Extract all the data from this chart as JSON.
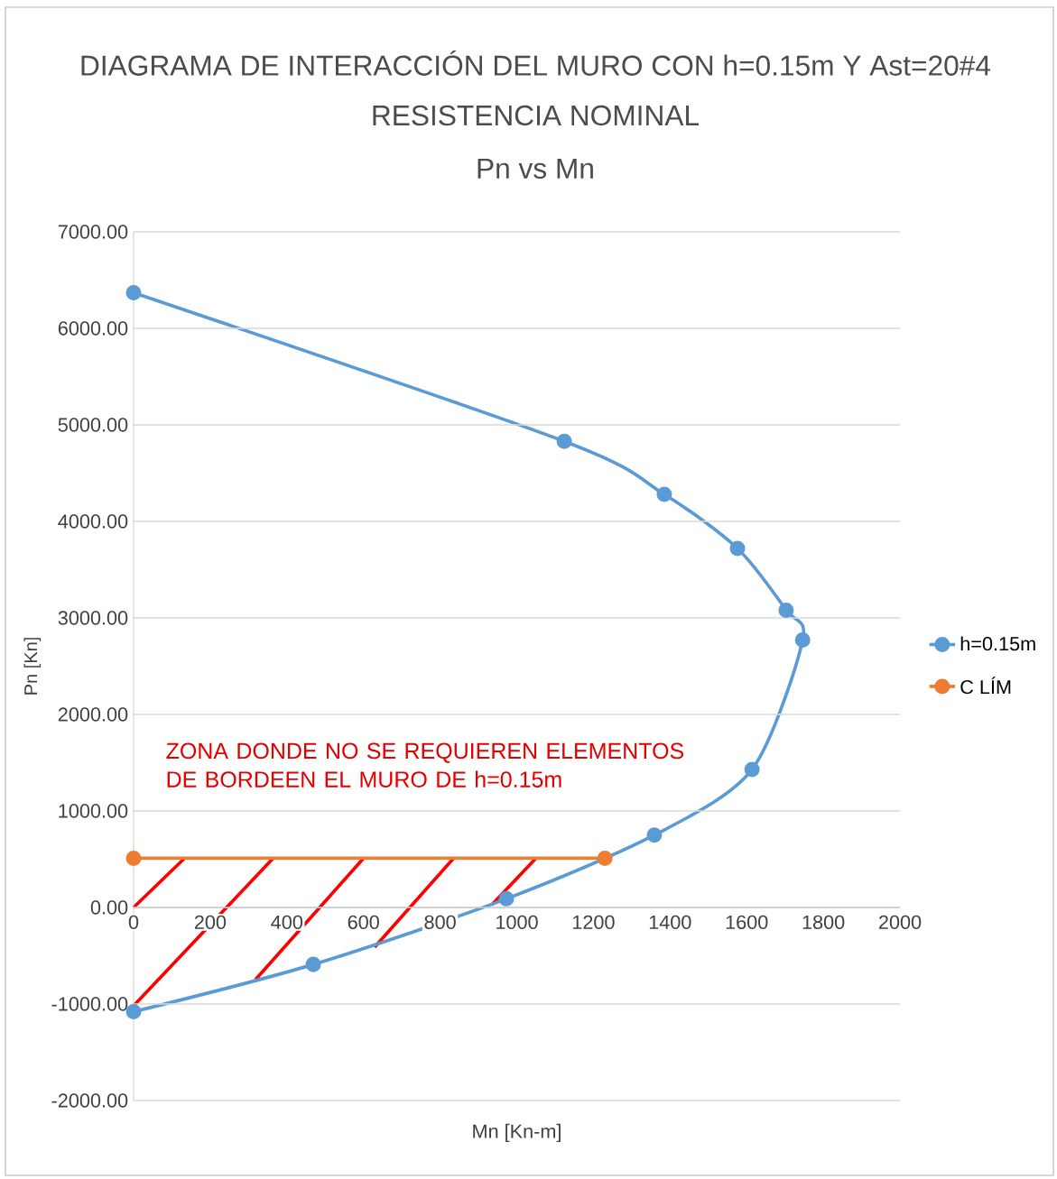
{
  "chart_data": {
    "type": "line",
    "title": "DIAGRAMA DE INTERACCIÓN DEL MURO CON  h=0.15m Y  Ast=20#4",
    "subtitle": "RESISTENCIA NOMINAL",
    "annotations": [
      "Pn vs Mn",
      "ZONA DONDE NO SE REQUIEREN ELEMENTOS DE BORDEEN EL MURO DE h=0.15m"
    ],
    "xlabel": "Mn [Kn-m]",
    "ylabel": "Pn [Kn]",
    "series": [
      {
        "name": "h=0.15m",
        "color": "#5b9bd5",
        "x": [
          0,
          1124,
          1385,
          1576,
          1703,
          1746,
          1614,
          1359,
          973,
          469,
          0
        ],
        "values": [
          6370,
          4830,
          4280,
          3720,
          3080,
          2770,
          1430,
          750,
          90,
          -590,
          -1080
        ]
      },
      {
        "name": "C LÍM",
        "color": "#ed7d31",
        "x": [
          0,
          1230
        ],
        "values": [
          510,
          510
        ]
      }
    ],
    "xlim": [
      0,
      2000
    ],
    "xticks": [
      0,
      200,
      400,
      600,
      800,
      1000,
      1200,
      1400,
      1600,
      1800,
      2000
    ],
    "ylim": [
      -2000,
      7000
    ],
    "yticks": [
      {
        "value": -2000,
        "label": "-2000.00"
      },
      {
        "value": -1000,
        "label": "-1000.00"
      },
      {
        "value": 0,
        "label": "0.00"
      },
      {
        "value": 1000,
        "label": "1000.00"
      },
      {
        "value": 2000,
        "label": "2000.00"
      },
      {
        "value": 3000,
        "label": "3000.00"
      },
      {
        "value": 4000,
        "label": "4000.00"
      },
      {
        "value": 5000,
        "label": "5000.00"
      },
      {
        "value": 6000,
        "label": "6000.00"
      },
      {
        "value": 7000,
        "label": "7000.00"
      }
    ],
    "grid": "y",
    "legend": "right",
    "marker": "circle",
    "line_style": "solid"
  }
}
